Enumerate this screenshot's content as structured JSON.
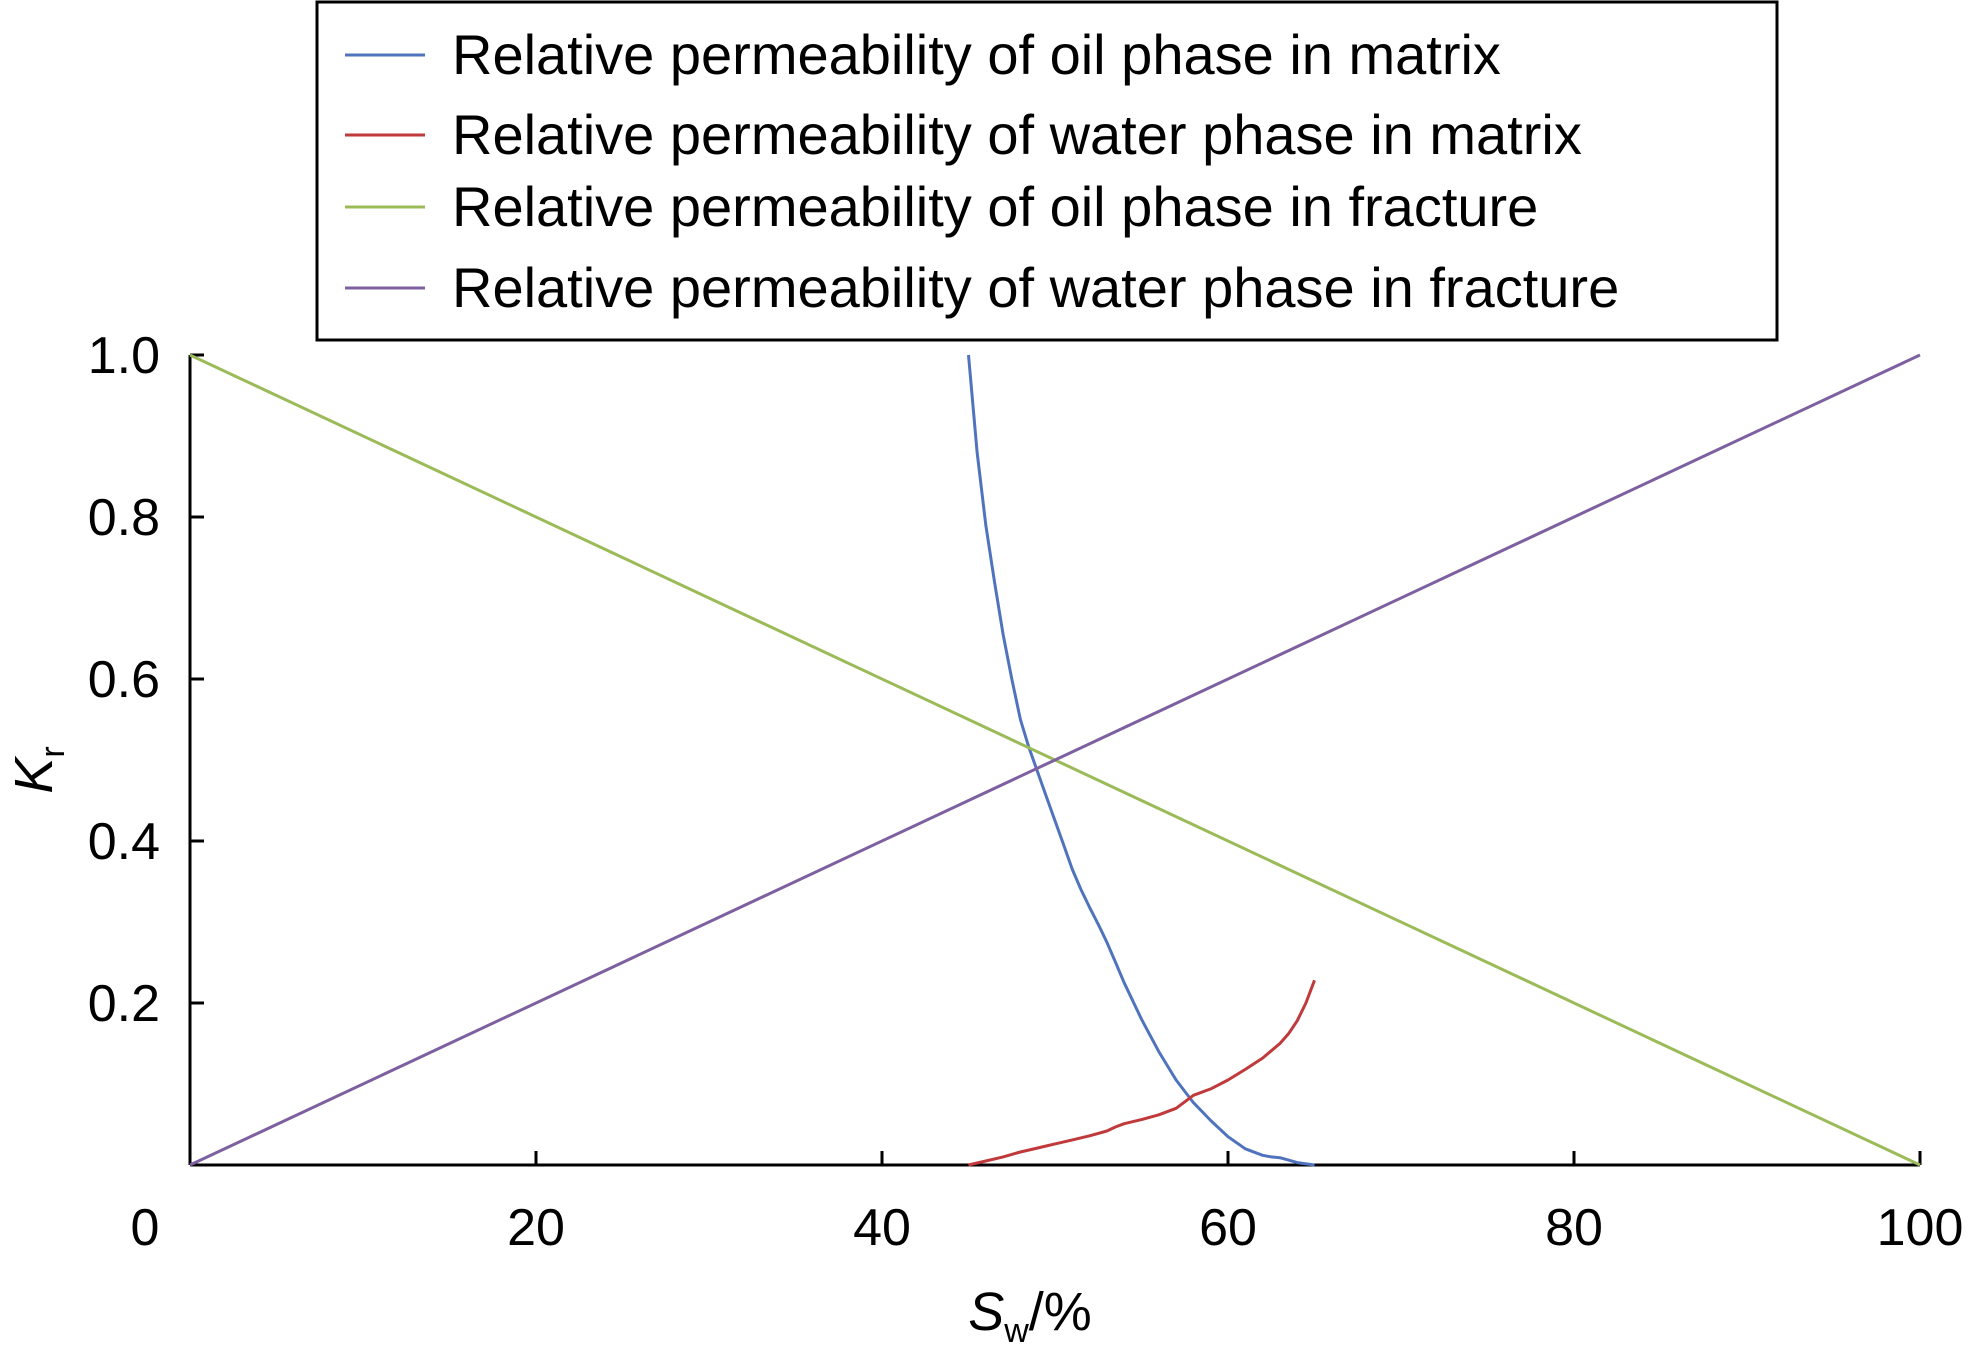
{
  "chart_data": {
    "type": "line",
    "xlabel": {
      "main": "S",
      "sub": "w",
      "unit": "/%"
    },
    "ylabel": {
      "main": "K",
      "sub": "r"
    },
    "xlim": [
      0,
      100
    ],
    "ylim": [
      0,
      1.0
    ],
    "x_ticks": [
      0,
      20,
      40,
      60,
      80,
      100
    ],
    "x_tick_labels": [
      "0",
      "20",
      "40",
      "60",
      "80",
      "100"
    ],
    "y_ticks": [
      0.2,
      0.4,
      0.6,
      0.8,
      1.0
    ],
    "y_tick_labels": [
      "0.2",
      "0.4",
      "0.6",
      "0.8",
      "1.0"
    ],
    "grid": false,
    "legend_position": "top-center",
    "series": [
      {
        "name": "Relative permeability of oil phase in matrix",
        "color": "#4f74bd",
        "x": [
          45,
          45.5,
          46,
          46.5,
          47,
          47.5,
          48,
          48.5,
          49,
          49.5,
          50,
          50.5,
          51,
          51.5,
          52,
          52.5,
          53,
          53.5,
          54,
          55,
          56,
          57,
          58,
          59,
          60,
          61,
          62,
          62.5,
          63,
          63.5,
          64,
          65
        ],
        "y": [
          1.0,
          0.88,
          0.79,
          0.72,
          0.655,
          0.6,
          0.55,
          0.515,
          0.485,
          0.455,
          0.425,
          0.395,
          0.365,
          0.34,
          0.318,
          0.297,
          0.275,
          0.25,
          0.225,
          0.18,
          0.14,
          0.105,
          0.077,
          0.055,
          0.035,
          0.02,
          0.012,
          0.01,
          0.009,
          0.006,
          0.003,
          0.0
        ]
      },
      {
        "name": "Relative permeability of water phase in matrix",
        "color": "#c0393b",
        "x": [
          45,
          46,
          47,
          48,
          49,
          50,
          51,
          52,
          53,
          53.5,
          54,
          55,
          56,
          57,
          57.5,
          58,
          59,
          60,
          61,
          62,
          63,
          63.5,
          64,
          64.5,
          65
        ],
        "y": [
          0.0,
          0.005,
          0.01,
          0.016,
          0.021,
          0.026,
          0.031,
          0.036,
          0.042,
          0.047,
          0.051,
          0.056,
          0.062,
          0.07,
          0.078,
          0.086,
          0.094,
          0.105,
          0.118,
          0.132,
          0.15,
          0.162,
          0.178,
          0.2,
          0.228
        ]
      },
      {
        "name": "Relative permeability of oil phase in fracture",
        "color": "#9bbb59",
        "x": [
          0,
          100
        ],
        "y": [
          1.0,
          0.0
        ]
      },
      {
        "name": "Relative permeability of water phase in fracture",
        "color": "#7d60a0",
        "x": [
          0,
          100
        ],
        "y": [
          0.0,
          1.0
        ]
      }
    ]
  }
}
